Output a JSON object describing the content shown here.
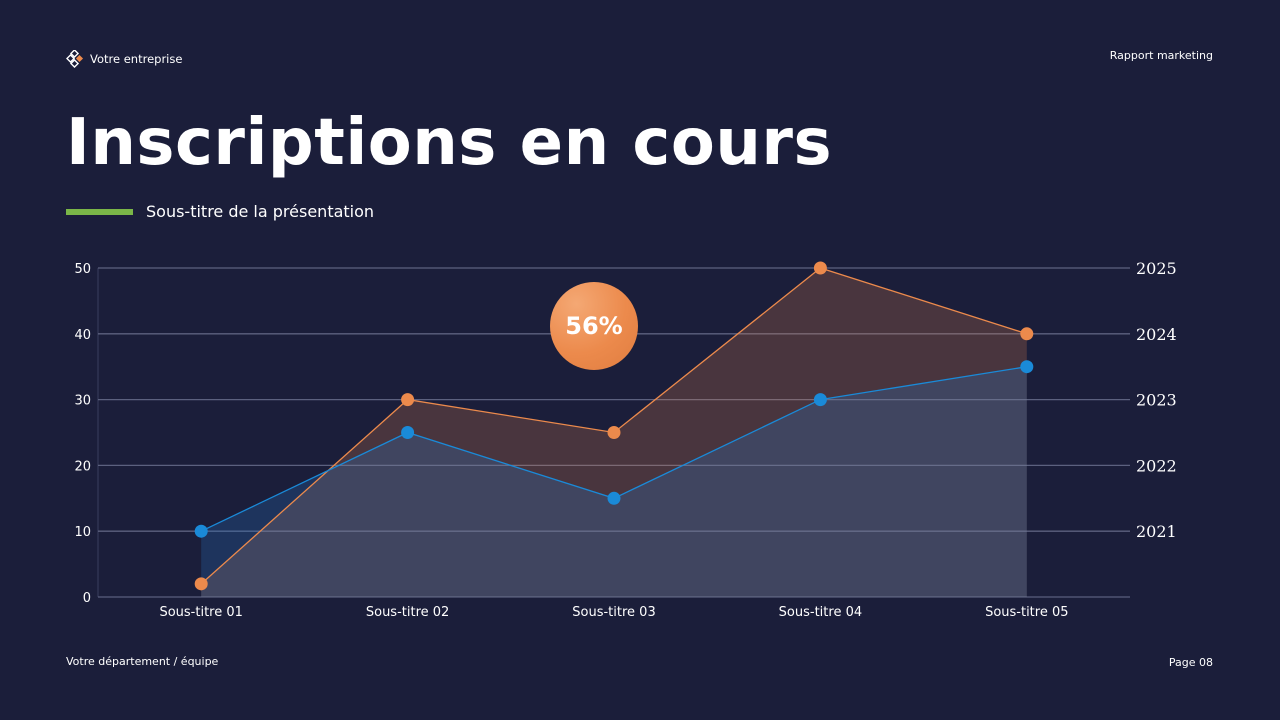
{
  "header": {
    "company": "Votre entreprise",
    "report": "Rapport marketing"
  },
  "title": "Inscriptions en cours",
  "subtitle": "Sous-titre de la présentation",
  "footer": {
    "department": "Votre département / équipe",
    "page": "Page 08"
  },
  "badge": "56%",
  "colors": {
    "background": "#1b1e3a",
    "accent_green": "#7ab648",
    "orange": "#ec8a4c",
    "blue": "#1a8ad8"
  },
  "chart_data": {
    "type": "area",
    "categories": [
      "Sous-titre 01",
      "Sous-titre 02",
      "Sous-titre 03",
      "Sous-titre 04",
      "Sous-titre 05"
    ],
    "series": [
      {
        "values": [
          2,
          30,
          25,
          50,
          40
        ],
        "color": "#ec8a4c"
      },
      {
        "values": [
          10,
          25,
          15,
          30,
          35
        ],
        "color": "#1a8ad8"
      }
    ],
    "ylim": [
      0,
      50
    ],
    "yticks": [
      0,
      10,
      20,
      30,
      40,
      50
    ],
    "y2ticks": [
      {
        "value": 10,
        "label": "2021"
      },
      {
        "value": 20,
        "label": "2022"
      },
      {
        "value": 30,
        "label": "2023"
      },
      {
        "value": 40,
        "label": "2024"
      },
      {
        "value": 50,
        "label": "2025"
      }
    ],
    "grid": true
  }
}
